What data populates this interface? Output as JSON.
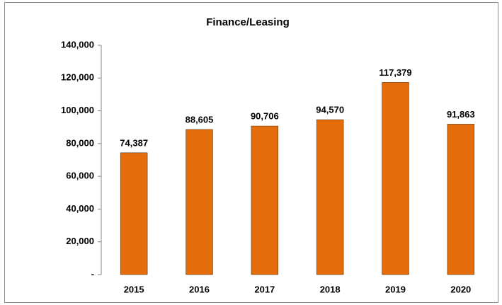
{
  "chart_data": {
    "type": "bar",
    "title": "Finance/Leasing",
    "categories": [
      "2015",
      "2016",
      "2017",
      "2018",
      "2019",
      "2020"
    ],
    "values": [
      74387,
      88605,
      90706,
      94570,
      117379,
      91863
    ],
    "value_labels": [
      "74,387",
      "88,605",
      "90,706",
      "94,570",
      "117,379",
      "91,863"
    ],
    "color": "#e46c0a",
    "ylim": [
      0,
      140000
    ],
    "yticks": [
      {
        "value": 0,
        "label": "-"
      },
      {
        "value": 20000,
        "label": "20,000"
      },
      {
        "value": 40000,
        "label": "40,000"
      },
      {
        "value": 60000,
        "label": "60,000"
      },
      {
        "value": 80000,
        "label": "80,000"
      },
      {
        "value": 100000,
        "label": "100,000"
      },
      {
        "value": 120000,
        "label": "120,000"
      },
      {
        "value": 140000,
        "label": "140,000"
      }
    ],
    "grid": false
  }
}
